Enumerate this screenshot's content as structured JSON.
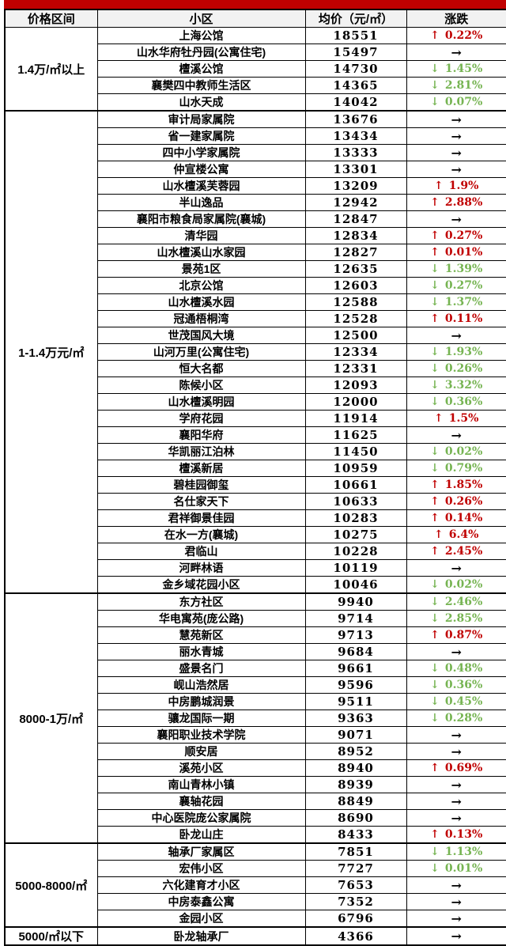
{
  "colors": {
    "accent_bar": "#C00000",
    "up": "#C00000",
    "down": "#76B452",
    "flat": "#000000",
    "header_bg": "#F2F2F2"
  },
  "icons": {
    "up": "↑",
    "down": "↓",
    "flat": "→"
  },
  "table": {
    "headers": [
      "价格区间",
      "小区",
      "均价（元/㎡）",
      "涨跌"
    ],
    "groups": [
      {
        "range": "1.4万/㎡以上",
        "rows": [
          {
            "name": "上海公馆",
            "price": "18551",
            "dir": "up",
            "pct": "0.22%"
          },
          {
            "name": "山水华府牡丹园(公寓住宅)",
            "price": "15497",
            "dir": "flat",
            "pct": ""
          },
          {
            "name": "檀溪公馆",
            "price": "14730",
            "dir": "down",
            "pct": "1.45%"
          },
          {
            "name": "襄樊四中教师生活区",
            "price": "14365",
            "dir": "down",
            "pct": "2.81%"
          },
          {
            "name": "山水天成",
            "price": "14042",
            "dir": "down",
            "pct": "0.07%"
          }
        ]
      },
      {
        "range": "1-1.4万元/㎡",
        "rows": [
          {
            "name": "审计局家属院",
            "price": "13676",
            "dir": "flat",
            "pct": ""
          },
          {
            "name": "省一建家属院",
            "price": "13434",
            "dir": "flat",
            "pct": ""
          },
          {
            "name": "四中小学家属院",
            "price": "13333",
            "dir": "flat",
            "pct": ""
          },
          {
            "name": "仲宣楼公寓",
            "price": "13301",
            "dir": "flat",
            "pct": ""
          },
          {
            "name": "山水檀溪芙蓉园",
            "price": "13209",
            "dir": "up",
            "pct": "1.9%"
          },
          {
            "name": "半山逸品",
            "price": "12942",
            "dir": "up",
            "pct": "2.88%"
          },
          {
            "name": "襄阳市粮食局家属院(襄城)",
            "price": "12847",
            "dir": "flat",
            "pct": ""
          },
          {
            "name": "清华园",
            "price": "12834",
            "dir": "up",
            "pct": "0.27%"
          },
          {
            "name": "山水檀溪山水家园",
            "price": "12827",
            "dir": "up",
            "pct": "0.01%"
          },
          {
            "name": "景苑1区",
            "price": "12635",
            "dir": "down",
            "pct": "1.39%"
          },
          {
            "name": "北京公馆",
            "price": "12603",
            "dir": "down",
            "pct": "0.27%"
          },
          {
            "name": "山水檀溪水园",
            "price": "12588",
            "dir": "down",
            "pct": "1.37%"
          },
          {
            "name": "冠通梧桐湾",
            "price": "12528",
            "dir": "up",
            "pct": "0.11%"
          },
          {
            "name": "世茂国风大境",
            "price": "12500",
            "dir": "flat",
            "pct": ""
          },
          {
            "name": "山河万里(公寓住宅)",
            "price": "12334",
            "dir": "down",
            "pct": "1.93%"
          },
          {
            "name": "恒大名都",
            "price": "12331",
            "dir": "down",
            "pct": "0.26%"
          },
          {
            "name": "陈候小区",
            "price": "12093",
            "dir": "down",
            "pct": "3.32%"
          },
          {
            "name": "山水檀溪明园",
            "price": "12000",
            "dir": "down",
            "pct": "0.36%"
          },
          {
            "name": "学府花园",
            "price": "11914",
            "dir": "up",
            "pct": "1.5%"
          },
          {
            "name": "襄阳华府",
            "price": "11625",
            "dir": "flat",
            "pct": ""
          },
          {
            "name": "华凯丽江泊林",
            "price": "11450",
            "dir": "down",
            "pct": "0.02%"
          },
          {
            "name": "檀溪新居",
            "price": "10959",
            "dir": "down",
            "pct": "0.79%"
          },
          {
            "name": "碧桂园御玺",
            "price": "10661",
            "dir": "up",
            "pct": "1.85%"
          },
          {
            "name": "名仕家天下",
            "price": "10633",
            "dir": "up",
            "pct": "0.26%"
          },
          {
            "name": "君祥御景佳园",
            "price": "10283",
            "dir": "up",
            "pct": "0.14%"
          },
          {
            "name": "在水一方(襄城)",
            "price": "10275",
            "dir": "up",
            "pct": "6.4%"
          },
          {
            "name": "君临山",
            "price": "10228",
            "dir": "up",
            "pct": "2.45%"
          },
          {
            "name": "河畔林语",
            "price": "10119",
            "dir": "flat",
            "pct": ""
          },
          {
            "name": "金乡域花园小区",
            "price": "10046",
            "dir": "down",
            "pct": "0.02%"
          }
        ]
      },
      {
        "range": "8000-1万/㎡",
        "rows": [
          {
            "name": "东方社区",
            "price": "9940",
            "dir": "down",
            "pct": "2.46%"
          },
          {
            "name": "华电寓苑(庞公路)",
            "price": "9714",
            "dir": "down",
            "pct": "2.85%"
          },
          {
            "name": "慧苑新区",
            "price": "9713",
            "dir": "up",
            "pct": "0.87%"
          },
          {
            "name": "丽水青城",
            "price": "9684",
            "dir": "flat",
            "pct": ""
          },
          {
            "name": "盛景名门",
            "price": "9661",
            "dir": "down",
            "pct": "0.48%"
          },
          {
            "name": "岘山浩然居",
            "price": "9596",
            "dir": "down",
            "pct": "0.36%"
          },
          {
            "name": "中房鹏城润景",
            "price": "9511",
            "dir": "down",
            "pct": "0.45%"
          },
          {
            "name": "骧龙国际一期",
            "price": "9363",
            "dir": "down",
            "pct": "0.28%"
          },
          {
            "name": "襄阳职业技术学院",
            "price": "9071",
            "dir": "flat",
            "pct": ""
          },
          {
            "name": "顺安居",
            "price": "8952",
            "dir": "flat",
            "pct": ""
          },
          {
            "name": "溪苑小区",
            "price": "8940",
            "dir": "up",
            "pct": "0.69%"
          },
          {
            "name": "南山青林小镇",
            "price": "8939",
            "dir": "flat",
            "pct": ""
          },
          {
            "name": "襄轴花园",
            "price": "8849",
            "dir": "flat",
            "pct": ""
          },
          {
            "name": "中心医院庞公家属院",
            "price": "8690",
            "dir": "flat",
            "pct": ""
          },
          {
            "name": "卧龙山庄",
            "price": "8433",
            "dir": "up",
            "pct": "0.13%"
          }
        ]
      },
      {
        "range": "5000-8000/㎡",
        "rows": [
          {
            "name": "轴承厂家属区",
            "price": "7851",
            "dir": "down",
            "pct": "1.13%"
          },
          {
            "name": "宏伟小区",
            "price": "7727",
            "dir": "down",
            "pct": "0.01%"
          },
          {
            "name": "六化建育才小区",
            "price": "7653",
            "dir": "flat",
            "pct": ""
          },
          {
            "name": "中房泰鑫公寓",
            "price": "7352",
            "dir": "flat",
            "pct": ""
          },
          {
            "name": "金园小区",
            "price": "6796",
            "dir": "flat",
            "pct": ""
          }
        ]
      },
      {
        "range": "5000/㎡以下",
        "rows": [
          {
            "name": "卧龙轴承厂",
            "price": "4366",
            "dir": "flat",
            "pct": ""
          }
        ]
      }
    ]
  }
}
